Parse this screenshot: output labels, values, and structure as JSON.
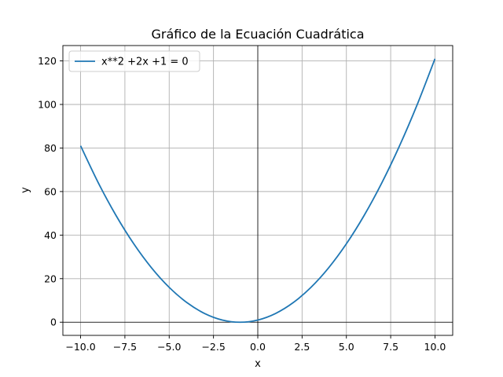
{
  "chart_data": {
    "type": "line",
    "title": "Gráfico de la Ecuación Cuadrática",
    "xlabel": "x",
    "ylabel": "y",
    "xlim": [
      -11.0,
      11.0
    ],
    "ylim": [
      -6.05,
      127.05
    ],
    "xticks": [
      -10.0,
      -7.5,
      -5.0,
      -2.5,
      0.0,
      2.5,
      5.0,
      7.5,
      10.0
    ],
    "xtick_labels": [
      "−10.0",
      "−7.5",
      "−5.0",
      "−2.5",
      "0.0",
      "2.5",
      "5.0",
      "7.5",
      "10.0"
    ],
    "yticks": [
      0,
      20,
      40,
      60,
      80,
      100,
      120
    ],
    "ytick_labels": [
      "0",
      "20",
      "40",
      "60",
      "80",
      "100",
      "120"
    ],
    "grid": true,
    "axis_lines_at_zero": true,
    "legend_placement": "upper-left",
    "series": [
      {
        "name": "x**2 +2x +1 = 0",
        "color": "#1f77b4",
        "x": [
          -10,
          -9,
          -8,
          -7,
          -6,
          -5,
          -4,
          -3,
          -2,
          -1,
          0,
          1,
          2,
          3,
          4,
          5,
          6,
          7,
          8,
          9,
          10
        ],
        "y": [
          81,
          64,
          49,
          36,
          25,
          16,
          9,
          4,
          1,
          0,
          1,
          4,
          9,
          16,
          25,
          36,
          49,
          64,
          81,
          100,
          121
        ]
      }
    ]
  }
}
